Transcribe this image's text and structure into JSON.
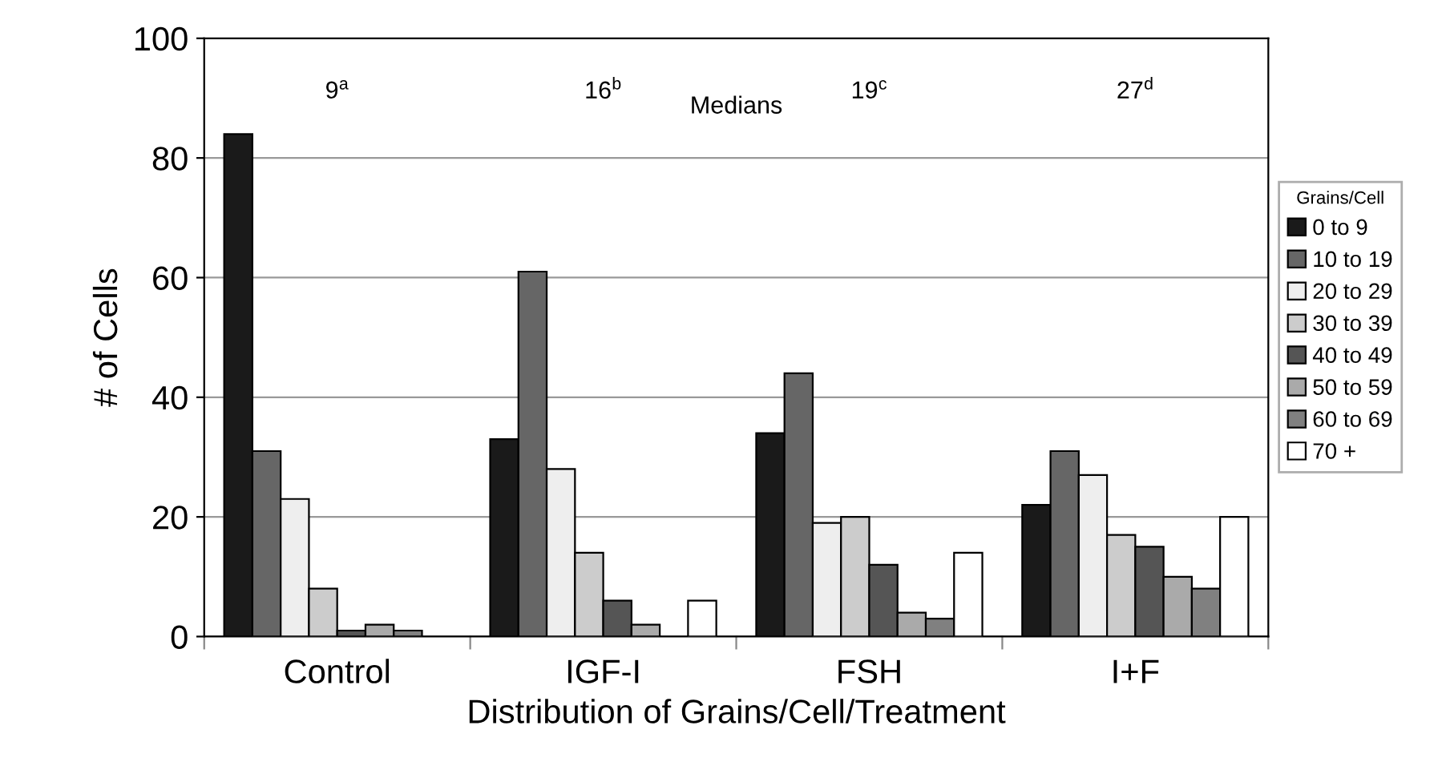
{
  "chart_data": {
    "type": "bar",
    "xlabel": "Distribution of Grains/Cell/Treatment",
    "ylabel": "# of Cells",
    "legend_title": "Grains/Cell",
    "categories": [
      "Control",
      "IGF-I",
      "FSH",
      "I+F"
    ],
    "series": [
      {
        "name": "0 to 9",
        "color": "#1a1a1a",
        "values": [
          84,
          33,
          34,
          22
        ]
      },
      {
        "name": "10 to 19",
        "color": "#666666",
        "values": [
          31,
          61,
          44,
          31
        ]
      },
      {
        "name": "20 to 29",
        "color": "#eeeeee",
        "values": [
          23,
          28,
          19,
          27
        ]
      },
      {
        "name": "30 to 39",
        "color": "#cccccc",
        "values": [
          8,
          14,
          20,
          17
        ]
      },
      {
        "name": "40 to 49",
        "color": "#555555",
        "values": [
          1,
          6,
          12,
          15
        ]
      },
      {
        "name": "50 to 59",
        "color": "#aaaaaa",
        "values": [
          2,
          2,
          4,
          10
        ]
      },
      {
        "name": "60 to 69",
        "color": "#808080",
        "values": [
          1,
          null,
          3,
          8
        ]
      },
      {
        "name": "70 +",
        "color": "#ffffff",
        "values": [
          null,
          6,
          14,
          20
        ]
      }
    ],
    "ylim": [
      0,
      100
    ],
    "yticks": [
      0,
      20,
      40,
      60,
      80,
      100
    ],
    "grid": "y",
    "legend": "right",
    "annotations": [
      "9$^{a}$",
      "16$^{b}$",
      "19$^{c}$",
      "27$^{d}$",
      "Medians"
    ]
  }
}
